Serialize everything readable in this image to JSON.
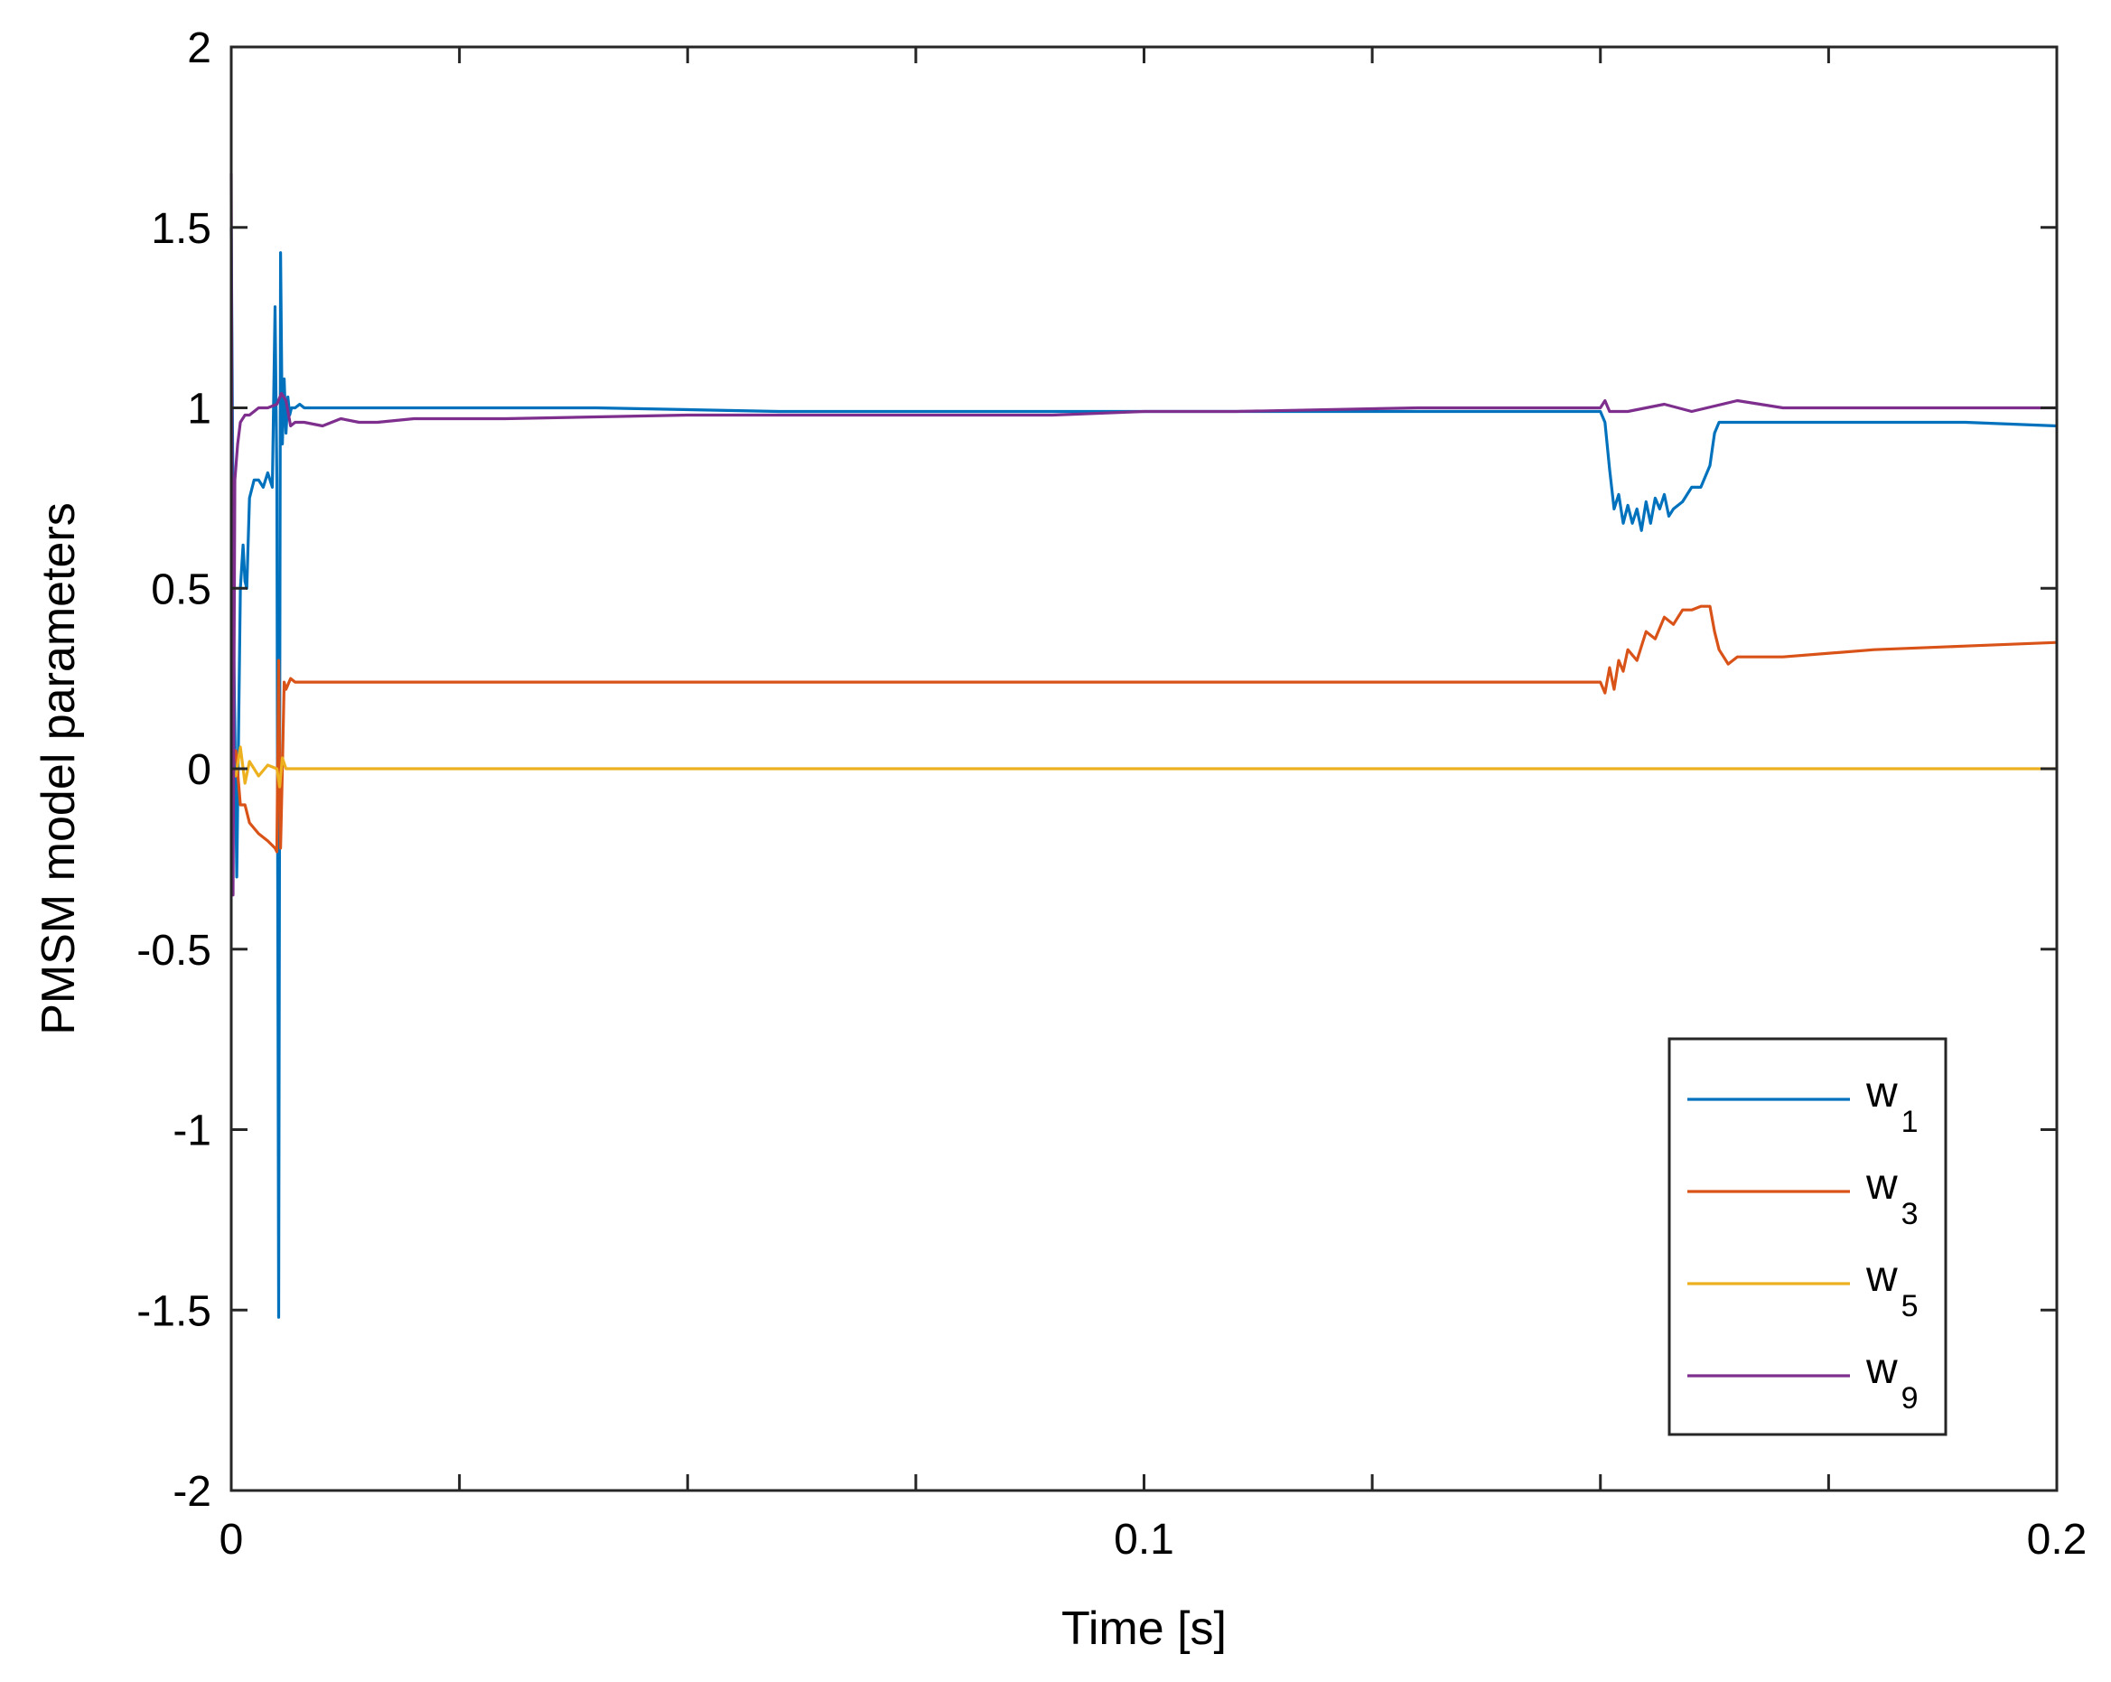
{
  "chart_data": {
    "type": "line",
    "title": "",
    "xlabel": "Time [s]",
    "ylabel": "PMSM model parameters",
    "xlim": [
      0,
      0.2
    ],
    "ylim": [
      -2,
      2
    ],
    "xticks": [
      0,
      0.025,
      0.05,
      0.075,
      0.1,
      0.125,
      0.15,
      0.175,
      0.2
    ],
    "xtick_labels": [
      "0",
      "",
      "",
      "",
      "0.1",
      "",
      "",
      "",
      "0.2"
    ],
    "yticks": [
      2,
      1.5,
      1,
      0.5,
      0,
      -0.5,
      -1,
      -1.5,
      -2
    ],
    "ytick_labels": [
      "2",
      "1.5",
      "1",
      "0.5",
      "0",
      "-0.5",
      "-1",
      "-1.5",
      "-2"
    ],
    "grid": false,
    "legend_position": "bottom-right",
    "series": [
      {
        "name": "w1",
        "label_main": "w",
        "label_sub": "1",
        "color": "#0072BD",
        "x": [
          0,
          0.0003,
          0.0006,
          0.001,
          0.0013,
          0.0015,
          0.0017,
          0.002,
          0.0025,
          0.003,
          0.0035,
          0.004,
          0.0045,
          0.0048,
          0.005,
          0.0052,
          0.0054,
          0.0056,
          0.0058,
          0.006,
          0.0062,
          0.0064,
          0.0066,
          0.007,
          0.0075,
          0.008,
          0.01,
          0.02,
          0.04,
          0.06,
          0.08,
          0.1,
          0.12,
          0.14,
          0.15,
          0.1505,
          0.151,
          0.1515,
          0.152,
          0.1525,
          0.153,
          0.1535,
          0.154,
          0.1545,
          0.155,
          0.1555,
          0.156,
          0.1565,
          0.157,
          0.1575,
          0.158,
          0.159,
          0.16,
          0.161,
          0.162,
          0.1625,
          0.163,
          0.165,
          0.17,
          0.18,
          0.19,
          0.2
        ],
        "y": [
          1.5,
          0.3,
          -0.3,
          0.5,
          0.62,
          0.52,
          0.5,
          0.75,
          0.8,
          0.8,
          0.78,
          0.82,
          0.78,
          1.28,
          0.8,
          -1.52,
          1.43,
          0.9,
          1.08,
          0.93,
          1.03,
          0.98,
          1.0,
          1.0,
          1.01,
          1.0,
          1.0,
          1.0,
          1.0,
          0.99,
          0.99,
          0.99,
          0.99,
          0.99,
          0.99,
          0.96,
          0.83,
          0.72,
          0.76,
          0.68,
          0.73,
          0.68,
          0.72,
          0.66,
          0.74,
          0.68,
          0.75,
          0.72,
          0.76,
          0.7,
          0.72,
          0.74,
          0.78,
          0.78,
          0.84,
          0.93,
          0.96,
          0.96,
          0.96,
          0.96,
          0.96,
          0.95
        ]
      },
      {
        "name": "w3",
        "label_main": "w",
        "label_sub": "3",
        "color": "#D95319",
        "x": [
          0,
          0.0005,
          0.001,
          0.0015,
          0.002,
          0.003,
          0.004,
          0.0048,
          0.005,
          0.0052,
          0.0054,
          0.0056,
          0.0058,
          0.006,
          0.0065,
          0.007,
          0.01,
          0.05,
          0.1,
          0.12,
          0.15,
          0.1505,
          0.151,
          0.1515,
          0.152,
          0.1525,
          0.153,
          0.154,
          0.155,
          0.156,
          0.157,
          0.158,
          0.159,
          0.16,
          0.161,
          0.1615,
          0.162,
          0.1625,
          0.163,
          0.164,
          0.165,
          0.17,
          0.18,
          0.19,
          0.2
        ],
        "y": [
          0.0,
          0.05,
          -0.1,
          -0.1,
          -0.15,
          -0.18,
          -0.2,
          -0.22,
          -0.23,
          0.3,
          -0.22,
          0.0,
          0.24,
          0.22,
          0.25,
          0.24,
          0.24,
          0.24,
          0.24,
          0.24,
          0.24,
          0.21,
          0.28,
          0.22,
          0.3,
          0.27,
          0.33,
          0.3,
          0.38,
          0.36,
          0.42,
          0.4,
          0.44,
          0.44,
          0.45,
          0.45,
          0.45,
          0.38,
          0.33,
          0.29,
          0.31,
          0.31,
          0.33,
          0.34,
          0.35
        ]
      },
      {
        "name": "w5",
        "label_main": "w",
        "label_sub": "5",
        "color": "#EDB120",
        "x": [
          0,
          0.0005,
          0.001,
          0.0015,
          0.002,
          0.003,
          0.004,
          0.005,
          0.0053,
          0.0056,
          0.006,
          0.007,
          0.01,
          0.05,
          0.1,
          0.15,
          0.2
        ],
        "y": [
          0.0,
          -0.02,
          0.06,
          -0.04,
          0.02,
          -0.02,
          0.01,
          0.0,
          -0.05,
          0.03,
          0.0,
          0.0,
          0.0,
          0.0,
          0.0,
          0.0,
          0.0
        ]
      },
      {
        "name": "w9",
        "label_main": "w",
        "label_sub": "9",
        "color": "#7E2F8E",
        "x": [
          0,
          0.0002,
          0.0004,
          0.0007,
          0.001,
          0.0015,
          0.002,
          0.003,
          0.004,
          0.005,
          0.0055,
          0.006,
          0.0065,
          0.007,
          0.008,
          0.01,
          0.012,
          0.014,
          0.016,
          0.02,
          0.03,
          0.05,
          0.07,
          0.09,
          0.1,
          0.11,
          0.13,
          0.15,
          0.1505,
          0.151,
          0.153,
          0.155,
          0.157,
          0.16,
          0.165,
          0.17,
          0.18,
          0.2
        ],
        "y": [
          1.65,
          -0.35,
          0.8,
          0.9,
          0.96,
          0.98,
          0.98,
          1.0,
          1.0,
          1.01,
          1.04,
          1.02,
          0.95,
          0.96,
          0.96,
          0.95,
          0.97,
          0.96,
          0.96,
          0.97,
          0.97,
          0.98,
          0.98,
          0.98,
          0.99,
          0.99,
          1.0,
          1.0,
          1.02,
          0.99,
          0.99,
          1.0,
          1.01,
          0.99,
          1.02,
          1.0,
          1.0,
          1.0
        ]
      }
    ]
  }
}
